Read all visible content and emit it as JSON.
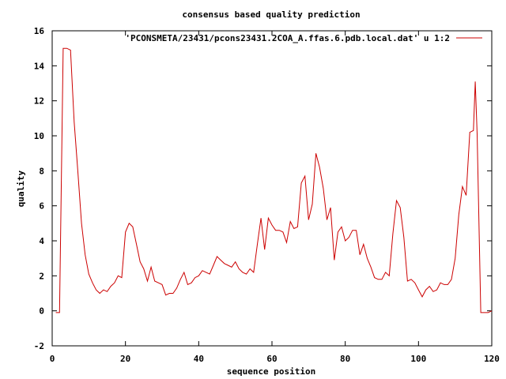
{
  "chart_data": {
    "type": "line",
    "title": "consensus based quality prediction",
    "xlabel": "sequence position",
    "ylabel": "quality",
    "xlim": [
      0,
      120
    ],
    "ylim": [
      -2,
      16
    ],
    "xticks": [
      0,
      20,
      40,
      60,
      80,
      100,
      120
    ],
    "yticks": [
      -2,
      0,
      2,
      4,
      6,
      8,
      10,
      12,
      14,
      16
    ],
    "grid": false,
    "legend_position": "top-right",
    "series": [
      {
        "name": "'PCONSMETA/23431/pcons23431.2COA_A.ffas.6.pdb.local.dat' u 1:2",
        "color": "#cc0000",
        "x": [
          1,
          2,
          3,
          4,
          5,
          6,
          7,
          8,
          9,
          10,
          11,
          12,
          13,
          14,
          15,
          16,
          17,
          18,
          19,
          20,
          21,
          22,
          23,
          24,
          25,
          26,
          27,
          28,
          29,
          30,
          31,
          32,
          33,
          34,
          35,
          36,
          37,
          38,
          39,
          40,
          41,
          42,
          43,
          44,
          45,
          46,
          47,
          48,
          49,
          50,
          51,
          52,
          53,
          54,
          55,
          56,
          57,
          58,
          59,
          60,
          61,
          62,
          63,
          64,
          65,
          66,
          67,
          68,
          69,
          70,
          71,
          72,
          73,
          74,
          75,
          76,
          77,
          78,
          79,
          80,
          81,
          82,
          83,
          84,
          85,
          86,
          87,
          88,
          89,
          90,
          91,
          92,
          93,
          94,
          95,
          96,
          97,
          98,
          99,
          100,
          101,
          102,
          103,
          104,
          105,
          106,
          107,
          108,
          109,
          110,
          111,
          112,
          113,
          114,
          115,
          115.5,
          116,
          117,
          118,
          119,
          120
        ],
        "y": [
          -0.1,
          -0.1,
          15.0,
          15.0,
          14.9,
          10.8,
          8.0,
          5.0,
          3.2,
          2.1,
          1.6,
          1.2,
          1.0,
          1.2,
          1.1,
          1.4,
          1.6,
          2.0,
          1.9,
          4.5,
          5.0,
          4.8,
          3.8,
          2.8,
          2.4,
          1.7,
          2.5,
          1.7,
          1.6,
          1.5,
          0.9,
          1.0,
          1.0,
          1.3,
          1.8,
          2.2,
          1.5,
          1.6,
          1.9,
          2.0,
          2.3,
          2.2,
          2.1,
          2.6,
          3.1,
          2.9,
          2.7,
          2.6,
          2.5,
          2.8,
          2.4,
          2.2,
          2.1,
          2.4,
          2.2,
          3.8,
          5.3,
          3.5,
          5.3,
          4.9,
          4.6,
          4.6,
          4.5,
          3.9,
          5.1,
          4.7,
          4.8,
          7.3,
          7.7,
          5.2,
          6.1,
          9.0,
          8.2,
          7.0,
          5.2,
          5.9,
          2.9,
          4.5,
          4.8,
          4.0,
          4.2,
          4.6,
          4.6,
          3.2,
          3.8,
          3.0,
          2.5,
          1.9,
          1.8,
          1.8,
          2.2,
          2.0,
          4.4,
          6.3,
          5.9,
          4.2,
          1.7,
          1.8,
          1.6,
          1.2,
          0.8,
          1.2,
          1.4,
          1.1,
          1.2,
          1.6,
          1.5,
          1.5,
          1.8,
          3.0,
          5.5,
          7.1,
          6.6,
          10.2,
          10.3,
          13.1,
          10.1,
          -0.1,
          -0.1,
          -0.1,
          0.0
        ]
      }
    ]
  }
}
